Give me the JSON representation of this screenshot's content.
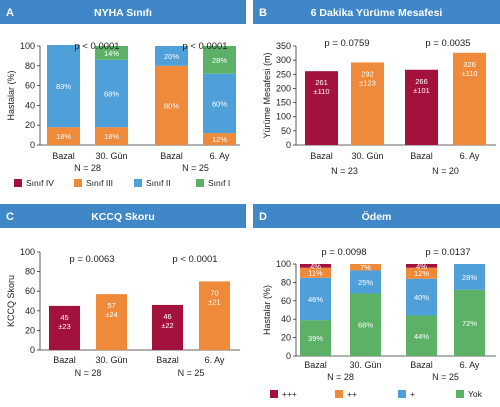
{
  "colors": {
    "header": "#3f87c6",
    "maroon": "#a3123c",
    "orange": "#ef8a3a",
    "blue": "#4f9fd8",
    "green": "#5cb167"
  },
  "chart_data": [
    {
      "panel": "A",
      "title": "NYHA Sınıfı",
      "type": "bar",
      "stacked": true,
      "ylabel": "Hastalar (%)",
      "ylim": [
        0,
        100
      ],
      "yticks": [
        "0",
        "20",
        "40",
        "60",
        "80",
        "100"
      ],
      "categories": [
        "Bazal",
        "30. Gün",
        "Bazal",
        "6. Ay"
      ],
      "groups": [
        {
          "n_label": "N = 28",
          "p_label": "p < 0.0001"
        },
        {
          "n_label": "N = 25",
          "p_label": "p < 0.0001"
        }
      ],
      "series": [
        {
          "name": "Sınıf IV",
          "color": "#a3123c",
          "values": [
            0,
            0,
            0,
            0
          ],
          "labels": [
            "",
            "",
            "",
            ""
          ]
        },
        {
          "name": "Sınıf III",
          "color": "#ef8a3a",
          "values": [
            18,
            18,
            80,
            12
          ],
          "labels": [
            "18%",
            "18%",
            "80%",
            "12%"
          ]
        },
        {
          "name": "Sınıf II",
          "color": "#4f9fd8",
          "values": [
            83,
            68,
            20,
            60
          ],
          "labels": [
            "83%",
            "68%",
            "20%",
            "60%"
          ]
        },
        {
          "name": "Sınıf I",
          "color": "#5cb167",
          "values": [
            0,
            14,
            0,
            28
          ],
          "labels": [
            "",
            "14%",
            "",
            "28%"
          ]
        }
      ],
      "legend": [
        "Sınıf IV",
        "Sınıf III",
        "Sınıf II",
        "Sınıf I"
      ]
    },
    {
      "panel": "B",
      "title": "6 Dakika Yürüme Mesafesi",
      "type": "bar",
      "ylabel": "Yürüme Mesafesi (m)",
      "ylim": [
        0,
        350
      ],
      "yticks": [
        "0",
        "50",
        "100",
        "150",
        "200",
        "250",
        "300",
        "350"
      ],
      "categories": [
        "Bazal",
        "30. Gün",
        "Bazal",
        "6. Ay"
      ],
      "groups": [
        {
          "n_label": "N = 23",
          "p_label": "p = 0.0759"
        },
        {
          "n_label": "N = 20",
          "p_label": "p = 0.0035"
        }
      ],
      "values": [
        261,
        292,
        266,
        326
      ],
      "value_labels": [
        "261",
        "292",
        "266",
        "326"
      ],
      "sd_labels": [
        "±110",
        "±123",
        "±101",
        "±110"
      ],
      "colors": [
        "#a3123c",
        "#ef8a3a",
        "#a3123c",
        "#ef8a3a"
      ]
    },
    {
      "panel": "C",
      "title": "KCCQ Skoru",
      "type": "bar",
      "ylabel": "KCCQ Skoru",
      "ylim": [
        0,
        100
      ],
      "yticks": [
        "0",
        "20",
        "40",
        "60",
        "80",
        "100"
      ],
      "categories": [
        "Bazal",
        "30. Gün",
        "Bazal",
        "6. Ay"
      ],
      "groups": [
        {
          "n_label": "N = 28",
          "p_label": "p = 0.0063"
        },
        {
          "n_label": "N = 25",
          "p_label": "p < 0.0001"
        }
      ],
      "values": [
        45,
        57,
        46,
        70
      ],
      "value_labels": [
        "45",
        "57",
        "46",
        "70"
      ],
      "sd_labels": [
        "±23",
        "±24",
        "±22",
        "±21"
      ],
      "colors": [
        "#a3123c",
        "#ef8a3a",
        "#a3123c",
        "#ef8a3a"
      ]
    },
    {
      "panel": "D",
      "title": "Ödem",
      "type": "bar",
      "stacked": true,
      "ylabel": "Hastalar (%)",
      "ylim": [
        0,
        100
      ],
      "yticks": [
        "0",
        "20",
        "40",
        "60",
        "80",
        "100"
      ],
      "categories": [
        "Bazal",
        "30. Gün",
        "Bazal",
        "6. Ay"
      ],
      "groups": [
        {
          "n_label": "N = 28",
          "p_label": "p = 0.0098"
        },
        {
          "n_label": "N = 25",
          "p_label": "p = 0.0137"
        }
      ],
      "series": [
        {
          "name": "Yok",
          "color": "#5cb167",
          "values": [
            39,
            68,
            44,
            72
          ],
          "labels": [
            "39%",
            "68%",
            "44%",
            "72%"
          ]
        },
        {
          "name": "+",
          "color": "#4f9fd8",
          "values": [
            46,
            25,
            40,
            28
          ],
          "labels": [
            "46%",
            "25%",
            "40%",
            "28%"
          ]
        },
        {
          "name": "++",
          "color": "#ef8a3a",
          "values": [
            11,
            7,
            12,
            0
          ],
          "labels": [
            "11%",
            "7%",
            "12%",
            ""
          ]
        },
        {
          "name": "+++",
          "color": "#a3123c",
          "values": [
            4,
            0,
            4,
            0
          ],
          "labels": [
            "4%",
            "",
            "4%",
            ""
          ]
        }
      ],
      "legend": [
        "+++",
        "++",
        "+",
        "Yok"
      ]
    }
  ]
}
